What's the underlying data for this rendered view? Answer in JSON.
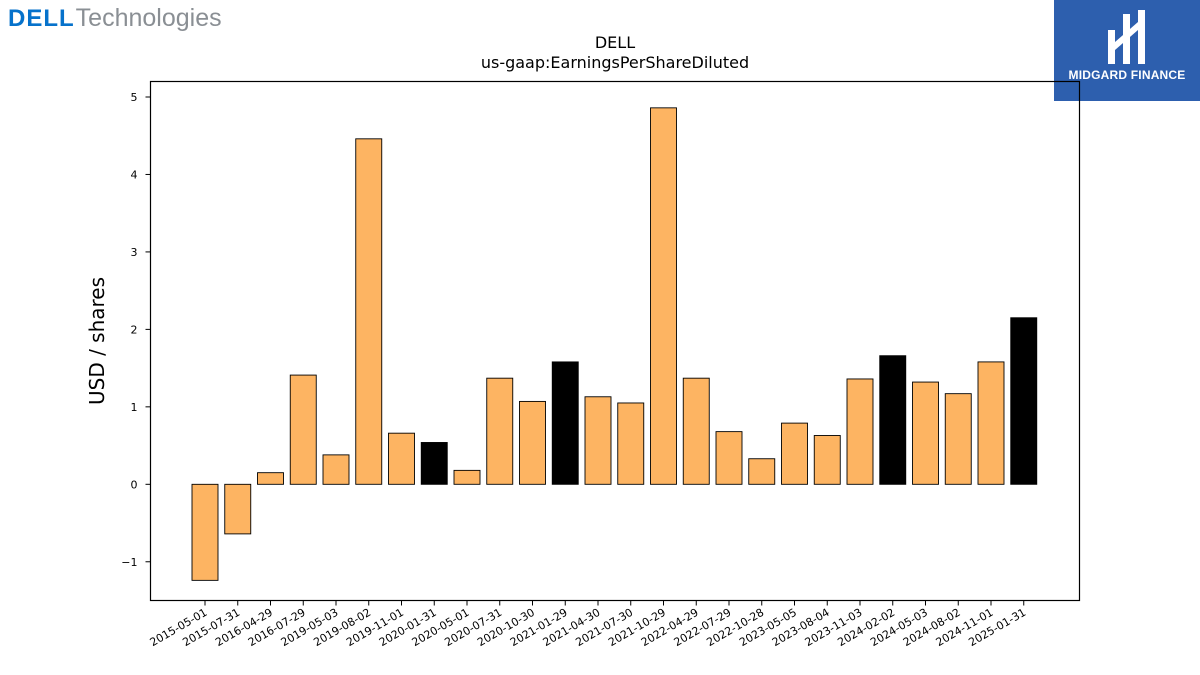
{
  "branding": {
    "left_logo": {
      "word1": "DELL",
      "word2": "Technologies"
    },
    "right_logo": {
      "name": "MIDGARD FINANCE"
    }
  },
  "colors": {
    "bar_normal": "#fdb462",
    "bar_highlight": "#000000",
    "edge": "#000000"
  },
  "chart_data": {
    "type": "bar",
    "title": "DELL",
    "subtitle": "us-gaap:EarningsPerShareDiluted",
    "xlabel": "",
    "ylabel": "USD / shares",
    "ylim": [
      -1.5,
      5.2
    ],
    "yticks": [
      -1,
      0,
      1,
      2,
      3,
      4,
      5
    ],
    "ytick_labels": [
      "−1",
      "0",
      "1",
      "2",
      "3",
      "4",
      "5"
    ],
    "categories": [
      "2015-05-01",
      "2015-07-31",
      "2016-04-29",
      "2016-07-29",
      "2019-05-03",
      "2019-08-02",
      "2019-11-01",
      "2020-01-31",
      "2020-05-01",
      "2020-07-31",
      "2020-10-30",
      "2021-01-29",
      "2021-04-30",
      "2021-07-30",
      "2021-10-29",
      "2022-04-29",
      "2022-07-29",
      "2022-10-28",
      "2023-05-05",
      "2023-08-04",
      "2023-11-03",
      "2024-02-02",
      "2024-05-03",
      "2024-08-02",
      "2024-11-01",
      "2025-01-31"
    ],
    "values": [
      -1.24,
      -0.64,
      0.15,
      1.41,
      0.38,
      4.46,
      0.66,
      0.54,
      0.18,
      1.37,
      1.07,
      1.58,
      1.13,
      1.05,
      4.86,
      1.37,
      0.68,
      0.33,
      0.79,
      0.63,
      1.36,
      1.66,
      1.32,
      1.17,
      1.58,
      2.15
    ],
    "highlight": [
      false,
      false,
      false,
      false,
      false,
      false,
      false,
      true,
      false,
      false,
      false,
      true,
      false,
      false,
      false,
      false,
      false,
      false,
      false,
      false,
      false,
      true,
      false,
      false,
      false,
      true
    ],
    "grid": false
  }
}
